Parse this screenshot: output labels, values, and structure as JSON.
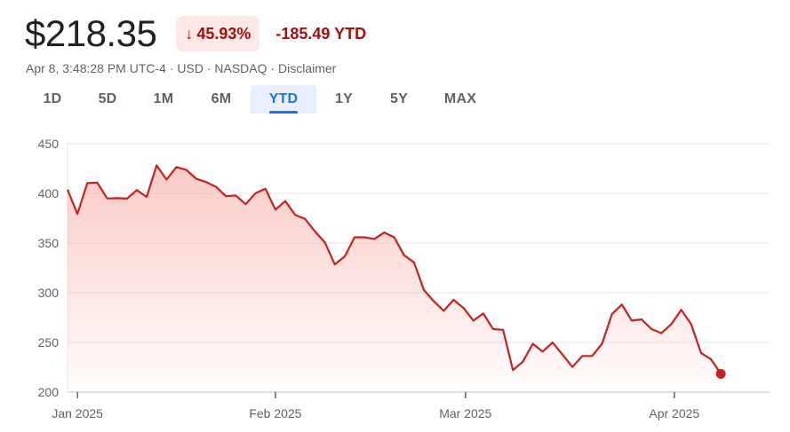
{
  "quote": {
    "price": "$218.35",
    "change_arrow": "↓",
    "change_percent": "45.93%",
    "change_amount": "-185.49 YTD"
  },
  "meta": {
    "timestamp": "Apr 8, 3:48:28 PM UTC-4 · USD · NASDAQ · ",
    "disclaimer": "Disclaimer"
  },
  "tabs": [
    {
      "label": "1D",
      "active": false
    },
    {
      "label": "5D",
      "active": false
    },
    {
      "label": "1M",
      "active": false
    },
    {
      "label": "6M",
      "active": false
    },
    {
      "label": "YTD",
      "active": true
    },
    {
      "label": "1Y",
      "active": false
    },
    {
      "label": "5Y",
      "active": false
    },
    {
      "label": "MAX",
      "active": false
    }
  ],
  "colors": {
    "line": "#c5221f",
    "fill": "#f28b82",
    "negative": "#a50e0e",
    "active_tab": "#1a73e8",
    "grid": "#e8eaed"
  },
  "chart_data": {
    "type": "line",
    "title": "",
    "xlabel": "",
    "ylabel": "",
    "ylim": [
      200,
      450
    ],
    "yticks": [
      "450",
      "400",
      "350",
      "300",
      "250",
      "200"
    ],
    "xlim": [
      0,
      68.5
    ],
    "xticks": [
      {
        "label": "Jan 2025",
        "x": 1
      },
      {
        "label": "Feb 2025",
        "x": 21
      },
      {
        "label": "Mar 2025",
        "x": 40.2
      },
      {
        "label": "Apr 2025",
        "x": 61.3
      }
    ],
    "grid": true,
    "series": [
      {
        "name": "",
        "values": [
          403.8,
          379.3,
          410.4,
          410.9,
          394.9,
          395.2,
          394.7,
          403.3,
          396.4,
          428.2,
          413.8,
          426.5,
          423.7,
          414.7,
          411.4,
          406.6,
          397.2,
          397.9,
          389.1,
          400.3,
          404.6,
          383.7,
          392.2,
          378.2,
          374.3,
          361.6,
          350.7,
          328.5,
          336.5,
          355.8,
          355.8,
          354.1,
          360.6,
          355.8,
          337.8,
          330.5,
          302.8,
          291.4,
          281.9,
          292.9,
          284.7,
          272.0,
          279.1,
          263.4,
          262.7,
          222.1,
          230.6,
          248.7,
          240.7,
          249.9,
          237.9,
          225.3,
          236.3,
          236.3,
          248.7,
          278.4,
          288.1,
          272.0,
          273.1,
          263.4,
          259.3,
          268.5,
          282.8,
          268.5,
          239.4,
          233.1,
          218.35
        ]
      }
    ]
  }
}
